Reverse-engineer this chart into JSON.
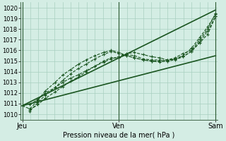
{
  "xlabel": "Pression niveau de la mer( hPa )",
  "bg_color": "#d4ede4",
  "grid_color": "#a8cfc0",
  "line_color": "#1a5520",
  "ylim": [
    1009.5,
    1020.5
  ],
  "yticks": [
    1010,
    1011,
    1012,
    1013,
    1014,
    1015,
    1016,
    1017,
    1018,
    1019,
    1020
  ],
  "xtick_positions": [
    0.0,
    0.5,
    1.0
  ],
  "xtick_labels": [
    "Jeu",
    "Ven",
    "Sam"
  ],
  "xlim": [
    -0.01,
    1.01
  ],
  "series": [
    {
      "x": [
        0.0,
        1.0
      ],
      "y": [
        1010.8,
        1019.8
      ],
      "marker": null,
      "linewidth": 1.2,
      "linestyle": "-"
    },
    {
      "x": [
        0.0,
        1.0
      ],
      "y": [
        1010.8,
        1015.5
      ],
      "marker": null,
      "linewidth": 1.2,
      "linestyle": "-"
    },
    {
      "x": [
        0.04,
        0.08,
        0.12,
        0.17,
        0.21,
        0.25,
        0.29,
        0.33,
        0.375,
        0.42,
        0.46,
        0.5,
        0.54,
        0.58,
        0.625,
        0.67,
        0.71,
        0.75,
        0.79,
        0.83,
        0.875,
        0.917,
        0.958,
        1.0
      ],
      "y": [
        1010.4,
        1010.9,
        1011.5,
        1012.1,
        1012.6,
        1013.1,
        1013.5,
        1014.0,
        1014.5,
        1015.0,
        1015.3,
        1015.3,
        1015.6,
        1015.5,
        1015.2,
        1015.1,
        1015.1,
        1015.0,
        1015.2,
        1015.5,
        1016.2,
        1017.2,
        1018.2,
        1019.4
      ],
      "marker": "+",
      "linewidth": 0.8,
      "linestyle": "--"
    },
    {
      "x": [
        0.04,
        0.08,
        0.12,
        0.17,
        0.21,
        0.25,
        0.29,
        0.33,
        0.375,
        0.42,
        0.46,
        0.5,
        0.54,
        0.58,
        0.625,
        0.67,
        0.71,
        0.75,
        0.79,
        0.83,
        0.875,
        0.917,
        0.958,
        1.0
      ],
      "y": [
        1010.9,
        1011.4,
        1012.0,
        1012.5,
        1013.0,
        1013.4,
        1013.7,
        1014.1,
        1014.5,
        1014.9,
        1015.2,
        1015.4,
        1015.7,
        1015.8,
        1015.6,
        1015.4,
        1015.3,
        1015.1,
        1015.2,
        1015.4,
        1015.9,
        1016.8,
        1017.8,
        1019.2
      ],
      "marker": "+",
      "linewidth": 0.8,
      "linestyle": "--"
    },
    {
      "x": [
        0.04,
        0.08,
        0.12,
        0.17,
        0.21,
        0.25,
        0.29,
        0.33,
        0.375,
        0.42,
        0.46,
        0.5,
        0.54,
        0.58,
        0.625,
        0.67,
        0.71,
        0.75,
        0.79,
        0.83,
        0.875,
        0.917,
        0.958,
        1.0
      ],
      "y": [
        1010.3,
        1011.1,
        1011.8,
        1012.5,
        1013.2,
        1013.8,
        1014.3,
        1014.7,
        1015.2,
        1015.6,
        1015.9,
        1015.7,
        1015.5,
        1015.3,
        1015.1,
        1015.0,
        1014.9,
        1015.0,
        1015.1,
        1015.4,
        1015.9,
        1016.7,
        1017.5,
        1019.2
      ],
      "marker": "+",
      "linewidth": 0.8,
      "linestyle": "--"
    },
    {
      "x": [
        0.0,
        0.04,
        0.08,
        0.12,
        0.17,
        0.21,
        0.25,
        0.29,
        0.33,
        0.375,
        0.42,
        0.46,
        0.5,
        0.54,
        0.58,
        0.625,
        0.67,
        0.71,
        0.75,
        0.79,
        0.83,
        0.875,
        0.917,
        0.958,
        1.0
      ],
      "y": [
        1010.8,
        1010.5,
        1011.3,
        1012.2,
        1013.0,
        1013.7,
        1014.2,
        1014.7,
        1015.1,
        1015.5,
        1015.8,
        1016.0,
        1015.8,
        1015.5,
        1015.3,
        1015.1,
        1015.0,
        1015.0,
        1015.1,
        1015.3,
        1015.7,
        1016.0,
        1017.0,
        1018.0,
        1019.5
      ],
      "marker": "+",
      "linewidth": 0.8,
      "linestyle": "--"
    }
  ]
}
